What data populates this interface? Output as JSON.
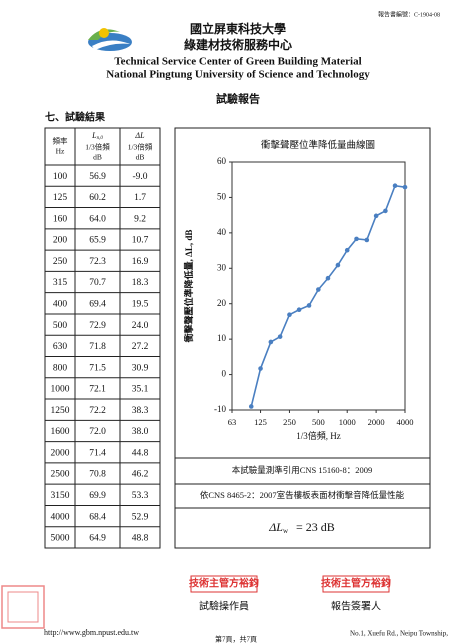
{
  "header": {
    "report_no": "報告書編號：C-1904-08",
    "org_zh_1": "國立屏東科技大學",
    "org_zh_2": "綠建材技術服務中心",
    "org_en_1": "Technical Service Center of Green Building Material",
    "org_en_2": "National Pingtung University of Science and Technology",
    "doc_title": "試驗報告"
  },
  "section_title": "七、試驗結果",
  "table": {
    "headers": [
      {
        "lines": [
          "頻率",
          "Hz"
        ]
      },
      {
        "symbol": "L",
        "subscript": "n,0",
        "lines": [
          "1/3倍頻",
          "dB"
        ]
      },
      {
        "symbol": "ΔL",
        "lines": [
          "1/3倍頻",
          "dB"
        ]
      }
    ],
    "rows": [
      [
        "100",
        "56.9",
        "-9.0"
      ],
      [
        "125",
        "60.2",
        "1.7"
      ],
      [
        "160",
        "64.0",
        "9.2"
      ],
      [
        "200",
        "65.9",
        "10.7"
      ],
      [
        "250",
        "72.3",
        "16.9"
      ],
      [
        "315",
        "70.7",
        "18.3"
      ],
      [
        "400",
        "69.4",
        "19.5"
      ],
      [
        "500",
        "72.9",
        "24.0"
      ],
      [
        "630",
        "71.8",
        "27.2"
      ],
      [
        "800",
        "71.5",
        "30.9"
      ],
      [
        "1000",
        "72.1",
        "35.1"
      ],
      [
        "1250",
        "72.2",
        "38.3"
      ],
      [
        "1600",
        "72.0",
        "38.0"
      ],
      [
        "2000",
        "71.4",
        "44.8"
      ],
      [
        "2500",
        "70.8",
        "46.2"
      ],
      [
        "3150",
        "69.9",
        "53.3"
      ],
      [
        "4000",
        "68.4",
        "52.9"
      ],
      [
        "5000",
        "64.9",
        "48.8"
      ]
    ]
  },
  "chart_data": {
    "type": "line",
    "title": "衝擊聲壓位準降低量曲線圖",
    "y_label": "衝擊聲壓位準降低量, ΔL, dB",
    "x_label": "1/3倍頻, Hz",
    "x": [
      100,
      125,
      160,
      200,
      250,
      315,
      400,
      500,
      630,
      800,
      1000,
      1250,
      1600,
      2000,
      2500,
      3150,
      4000
    ],
    "values": [
      -9.0,
      1.7,
      9.2,
      10.7,
      16.9,
      18.3,
      19.5,
      24.0,
      27.2,
      30.9,
      35.1,
      38.3,
      38.0,
      44.8,
      46.2,
      53.3,
      52.9
    ],
    "color": "#4a7fc1",
    "log_x": true,
    "xlim": [
      63,
      4000
    ],
    "xticks": [
      63,
      125,
      250,
      500,
      1000,
      2000,
      4000
    ],
    "ylim": [
      -10,
      60
    ],
    "yticks": [
      -10,
      0,
      10,
      20,
      30,
      40,
      50,
      60
    ]
  },
  "notes": [
    "本試驗量測準引用CNS 15160-8：2009",
    "依CNS 8465-2：2007室告樓板表面材衝擊音降低量性能"
  ],
  "result": {
    "symbol": "ΔL",
    "subscript": "w",
    "text": "= 23 dB"
  },
  "signatures": [
    {
      "stamp": "技術主管方裕鈞",
      "role": "試驗操作員"
    },
    {
      "stamp": "技術主管方裕鈞",
      "role": "報告簽署人"
    }
  ],
  "footer": {
    "url": "http://www.gbm.npust.edu.tw",
    "page": "第7頁，共7頁",
    "address": "No.1, Xuefu Rd., Neipu Township,"
  }
}
